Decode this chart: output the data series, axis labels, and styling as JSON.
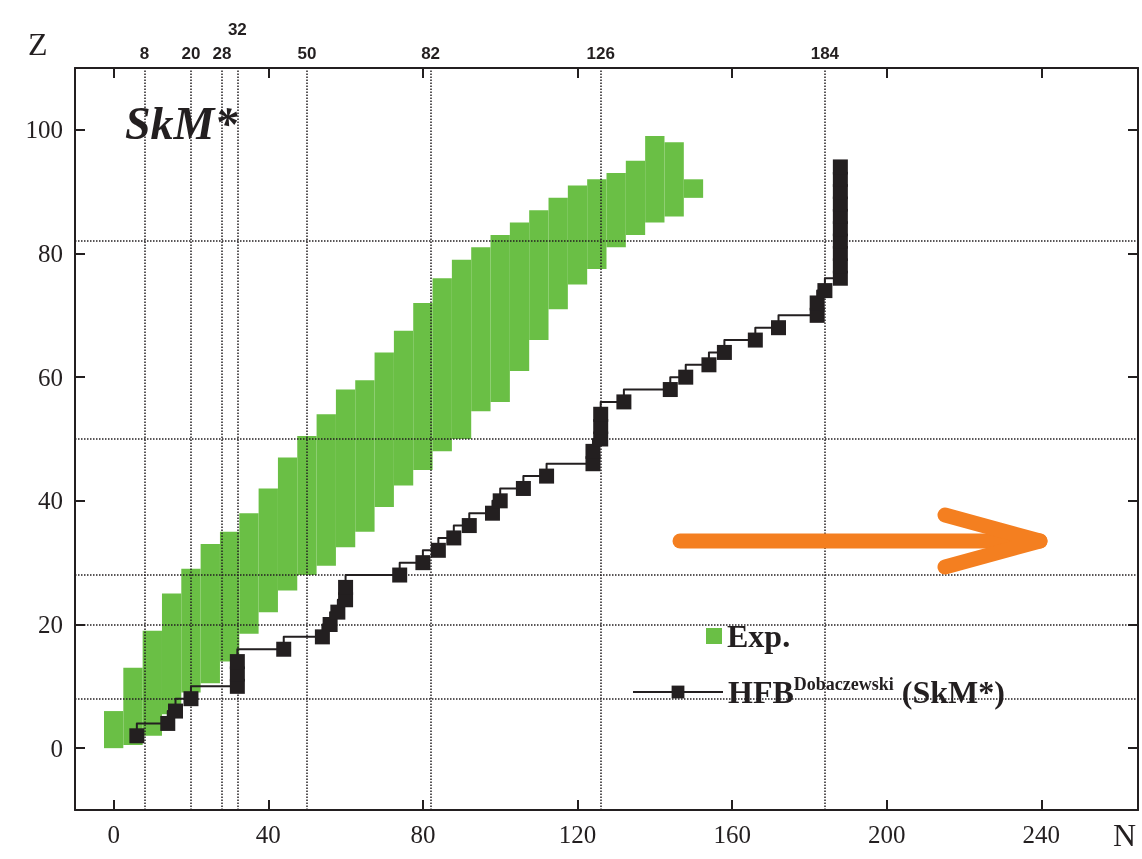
{
  "chart_data": {
    "type": "step",
    "xlabel": "N",
    "ylabel": "Z",
    "annotations": [
      "SkM*"
    ],
    "xlim": [
      -10,
      265
    ],
    "xticks": [
      0,
      40,
      80,
      120,
      160,
      200,
      240
    ],
    "ylim": [
      -10,
      110
    ],
    "yticks": [
      0,
      20,
      40,
      60,
      80,
      100
    ],
    "legend": "bottom right",
    "line_style": "solid",
    "series": [
      {
        "type": "bar",
        "name": "Exp.",
        "color": "#6abf45",
        "x": [
          0,
          5,
          10,
          15,
          20,
          25,
          30,
          35,
          40,
          45,
          50,
          55,
          60,
          65,
          70,
          75,
          80,
          85,
          90,
          95,
          100,
          105,
          110,
          115,
          120,
          125,
          130,
          135,
          140,
          145,
          150
        ],
        "base": [
          0,
          0.5,
          2,
          5.5,
          9,
          10.5,
          14,
          18.5,
          22,
          25.5,
          28,
          29.5,
          32.5,
          35,
          39,
          42.5,
          45,
          48,
          50,
          54.5,
          56,
          61,
          66,
          71,
          75,
          77.5,
          81,
          83,
          85,
          86,
          89
        ],
        "values": [
          6,
          12.5,
          17,
          19.5,
          20,
          22.5,
          21,
          19.5,
          20,
          21.5,
          22.5,
          24.5,
          25.5,
          24.5,
          25,
          25,
          27,
          28,
          29,
          26.5,
          27,
          24,
          21,
          18,
          16,
          14.5,
          12,
          12,
          14,
          12,
          3
        ]
      },
      {
        "name": "HFB$^{Dobaczewski}$ (SkM*)",
        "color": "#231f20",
        "marker": "square",
        "x": [
          6,
          14,
          16,
          20,
          32,
          32,
          32,
          44,
          54,
          56,
          58,
          60,
          60,
          74,
          80,
          84,
          88,
          92,
          98,
          100,
          106,
          112,
          124,
          124,
          126,
          126,
          126,
          132,
          144,
          148,
          154,
          158,
          166,
          172,
          182,
          182,
          184,
          188,
          188,
          188,
          188,
          188,
          188,
          188,
          188,
          188,
          188
        ],
        "values": [
          2,
          4,
          6,
          8,
          10,
          12,
          14,
          16,
          18,
          20,
          22,
          24,
          26,
          28,
          30,
          32,
          34,
          36,
          38,
          40,
          42,
          44,
          46,
          48,
          50,
          52,
          54,
          56,
          58,
          60,
          62,
          64,
          66,
          68,
          70,
          72,
          74,
          76,
          78,
          80,
          82,
          84,
          86,
          88,
          90,
          92,
          94
        ]
      }
    ],
    "ref_lines": [
      {
        "axis": "x",
        "value": 8,
        "label": "8",
        "line_style": "dotted"
      },
      {
        "axis": "x",
        "value": 20,
        "label": "20",
        "line_style": "dotted"
      },
      {
        "axis": "x",
        "value": 28,
        "label": "28",
        "line_style": "dotted"
      },
      {
        "axis": "x",
        "value": 32,
        "label": "32",
        "line_style": "dotted"
      },
      {
        "axis": "x",
        "value": 50,
        "label": "50",
        "line_style": "dotted"
      },
      {
        "axis": "x",
        "value": 82,
        "label": "82",
        "line_style": "dotted"
      },
      {
        "axis": "x",
        "value": 126,
        "label": "126",
        "line_style": "dotted"
      },
      {
        "axis": "x",
        "value": 184,
        "label": "184",
        "line_style": "dotted"
      },
      {
        "axis": "y",
        "value": 8,
        "line_style": "dotted"
      },
      {
        "axis": "y",
        "value": 20,
        "line_style": "dotted"
      },
      {
        "axis": "y",
        "value": 28,
        "line_style": "dotted"
      },
      {
        "axis": "y",
        "value": 50,
        "line_style": "dotted"
      },
      {
        "axis": "y",
        "value": 82,
        "line_style": "dotted"
      }
    ]
  }
}
